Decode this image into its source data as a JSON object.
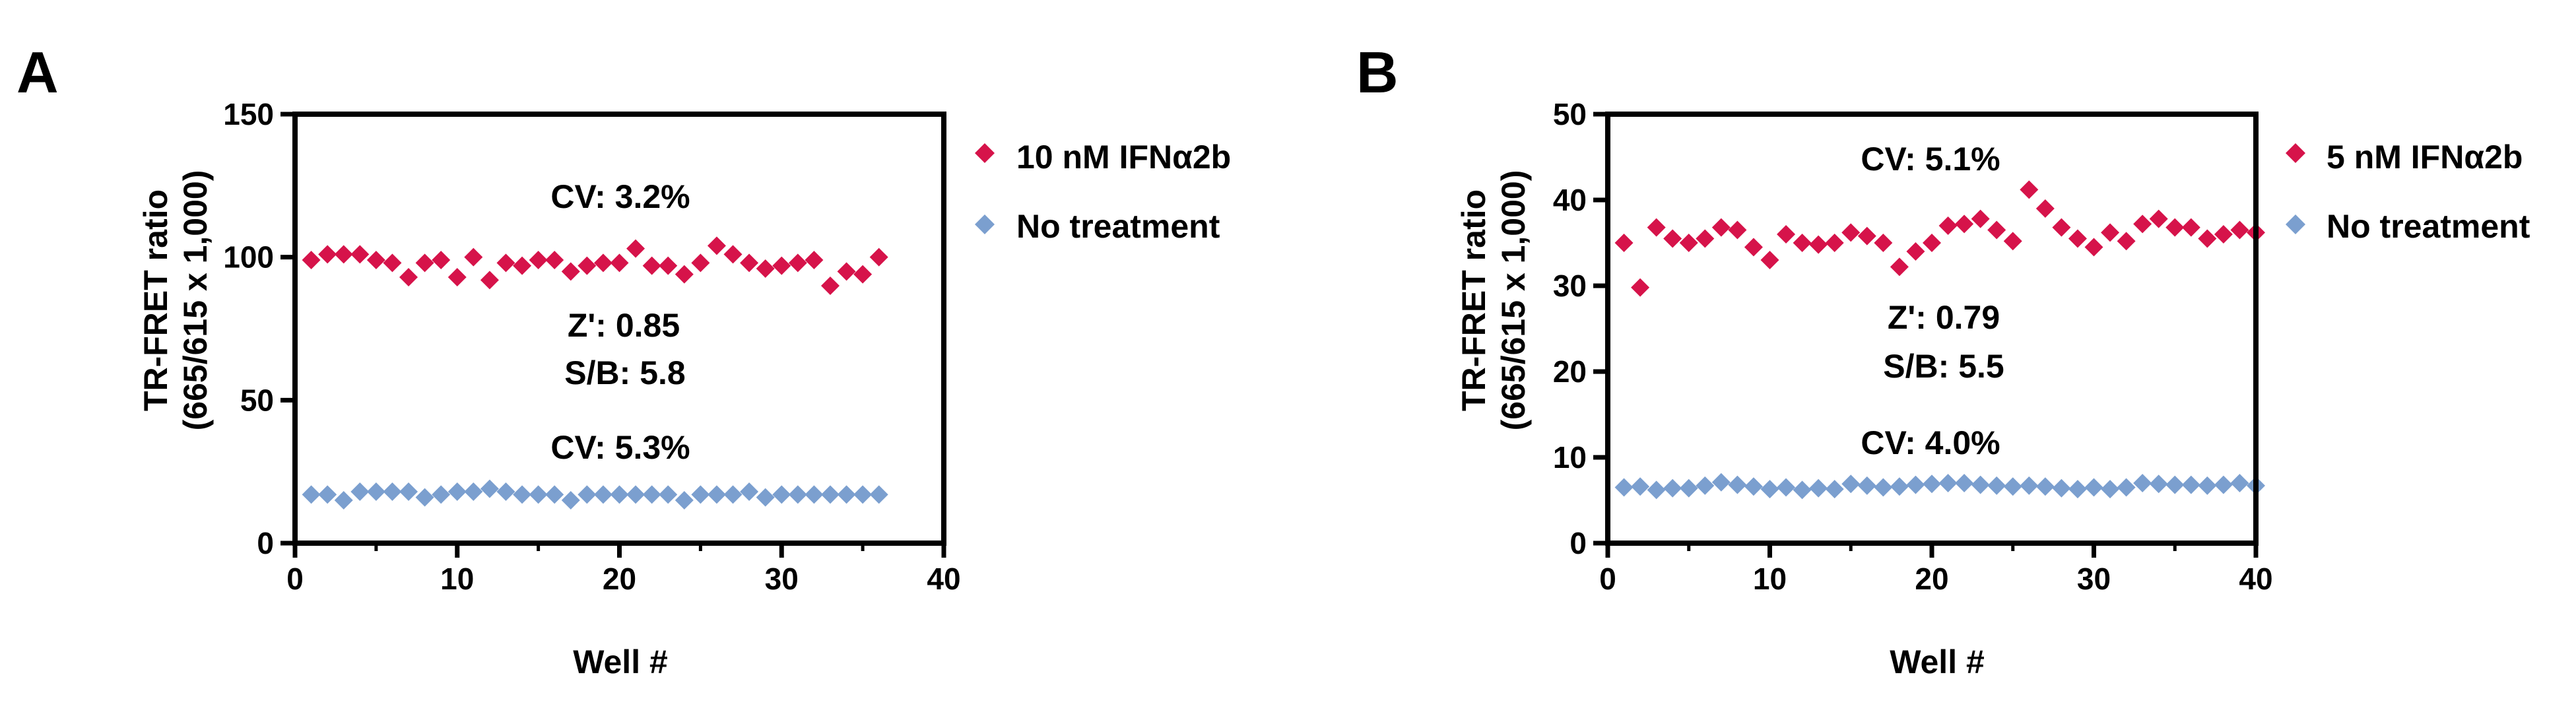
{
  "chart_data": [
    {
      "type": "scatter",
      "panel_label": "A",
      "xlabel": "Well #",
      "ylabel_lines": [
        "TR-FRET ratio",
        "(665/615 x 1,000)"
      ],
      "xlim": [
        0,
        40
      ],
      "ylim": [
        0,
        150
      ],
      "xticks": [
        0,
        10,
        20,
        30,
        40
      ],
      "yticks": [
        0,
        50,
        100,
        150
      ],
      "grid": false,
      "legend_position": "right",
      "series": [
        {
          "name": "10 nM IFNα2b",
          "color": "#d6134a",
          "marker": "diamond",
          "x": [
            1,
            2,
            3,
            4,
            5,
            6,
            7,
            8,
            9,
            10,
            11,
            12,
            13,
            14,
            15,
            16,
            17,
            18,
            19,
            20,
            21,
            22,
            23,
            24,
            25,
            26,
            27,
            28,
            29,
            30,
            31,
            32,
            33,
            34,
            35,
            36
          ],
          "y": [
            99,
            101,
            101,
            101,
            99,
            98,
            93,
            98,
            99,
            93,
            100,
            92,
            98,
            97,
            99,
            99,
            95,
            97,
            98,
            98,
            103,
            97,
            97,
            94,
            98,
            104,
            101,
            98,
            96,
            97,
            98,
            99,
            90,
            95,
            94,
            100
          ]
        },
        {
          "name": "No treatment",
          "color": "#7b9fcf",
          "marker": "diamond",
          "x": [
            1,
            2,
            3,
            4,
            5,
            6,
            7,
            8,
            9,
            10,
            11,
            12,
            13,
            14,
            15,
            16,
            17,
            18,
            19,
            20,
            21,
            22,
            23,
            24,
            25,
            26,
            27,
            28,
            29,
            30,
            31,
            32,
            33,
            34,
            35,
            36
          ],
          "y": [
            17,
            17,
            15,
            18,
            18,
            18,
            18,
            16,
            17,
            18,
            18,
            19,
            18,
            17,
            17,
            17,
            15,
            17,
            17,
            17,
            17,
            17,
            17,
            15,
            17,
            17,
            17,
            18,
            16,
            17,
            17,
            17,
            17,
            17,
            17,
            17
          ]
        }
      ],
      "annotations": [
        "CV: 3.2%",
        "Z': 0.85",
        "S/B: 5.8",
        "CV: 5.3%"
      ]
    },
    {
      "type": "scatter",
      "panel_label": "B",
      "xlabel": "Well #",
      "ylabel_lines": [
        "TR-FRET ratio",
        "(665/615 x 1,000)"
      ],
      "xlim": [
        0,
        40
      ],
      "ylim": [
        0,
        50
      ],
      "xticks": [
        0,
        10,
        20,
        30,
        40
      ],
      "yticks": [
        0,
        10,
        20,
        30,
        40,
        50
      ],
      "grid": false,
      "legend_position": "right",
      "series": [
        {
          "name": "5 nM IFNα2b",
          "color": "#d6134a",
          "marker": "diamond",
          "x": [
            1,
            2,
            3,
            4,
            5,
            6,
            7,
            8,
            9,
            10,
            11,
            12,
            13,
            14,
            15,
            16,
            17,
            18,
            19,
            20,
            21,
            22,
            23,
            24,
            25,
            26,
            27,
            28,
            29,
            30,
            31,
            32,
            33,
            34,
            35,
            36,
            37,
            38,
            39,
            40
          ],
          "y": [
            35,
            29.8,
            36.8,
            35.5,
            35,
            35.5,
            36.8,
            36.5,
            34.5,
            33,
            36,
            35,
            34.8,
            35,
            36.2,
            35.8,
            35,
            32.2,
            34,
            35,
            37,
            37.2,
            37.8,
            36.5,
            35.2,
            41.2,
            39,
            36.8,
            35.5,
            34.5,
            36.2,
            35.2,
            37.2,
            37.8,
            36.8,
            36.8,
            35.5,
            36,
            36.5,
            36.2
          ]
        },
        {
          "name": "No treatment",
          "color": "#7b9fcf",
          "marker": "diamond",
          "x": [
            1,
            2,
            3,
            4,
            5,
            6,
            7,
            8,
            9,
            10,
            11,
            12,
            13,
            14,
            15,
            16,
            17,
            18,
            19,
            20,
            21,
            22,
            23,
            24,
            25,
            26,
            27,
            28,
            29,
            30,
            31,
            32,
            33,
            34,
            35,
            36,
            37,
            38,
            39,
            40
          ],
          "y": [
            6.5,
            6.6,
            6.2,
            6.4,
            6.4,
            6.7,
            7.1,
            6.8,
            6.6,
            6.3,
            6.5,
            6.2,
            6.4,
            6.3,
            6.9,
            6.7,
            6.5,
            6.6,
            6.8,
            6.9,
            7,
            7,
            6.8,
            6.7,
            6.6,
            6.7,
            6.6,
            6.4,
            6.3,
            6.5,
            6.3,
            6.5,
            7,
            6.9,
            6.8,
            6.8,
            6.7,
            6.8,
            7,
            6.7
          ]
        }
      ],
      "annotations": [
        "CV: 5.1%",
        "Z': 0.79",
        "S/B: 5.5",
        "CV: 4.0%"
      ]
    }
  ]
}
